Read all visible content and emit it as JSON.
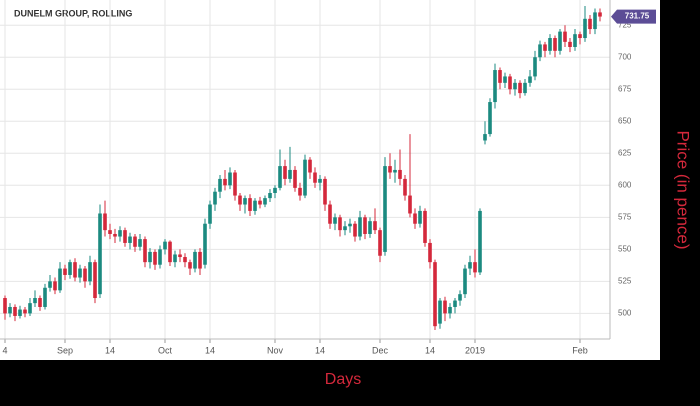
{
  "chart_data": {
    "type": "candlestick",
    "title": "DUNELM GROUP, ROLLING",
    "x_label": "Days",
    "y_label": "Price (in pence)",
    "categories": [
      "4",
      null,
      null,
      null,
      null,
      null,
      null,
      null,
      null,
      null,
      null,
      null,
      "Sep",
      null,
      null,
      null,
      null,
      null,
      null,
      null,
      null,
      "14",
      null,
      null,
      null,
      null,
      null,
      null,
      null,
      null,
      null,
      null,
      "Oct",
      null,
      null,
      null,
      null,
      null,
      null,
      null,
      null,
      "14",
      null,
      null,
      null,
      null,
      null,
      null,
      null,
      null,
      null,
      null,
      null,
      null,
      "Nov",
      null,
      null,
      null,
      null,
      null,
      null,
      null,
      null,
      "14",
      null,
      null,
      null,
      null,
      null,
      null,
      null,
      null,
      null,
      null,
      null,
      "Dec",
      null,
      null,
      null,
      null,
      null,
      null,
      null,
      null,
      null,
      "14",
      null,
      null,
      null,
      null,
      null,
      null,
      null,
      null,
      "2019",
      null,
      null,
      null,
      null,
      null,
      null,
      null,
      null,
      null,
      null,
      null,
      null,
      null,
      null,
      null,
      null,
      null,
      null,
      null,
      null,
      "Feb",
      null,
      null,
      null,
      null
    ],
    "open": [
      512,
      500,
      505,
      498,
      503,
      500,
      508,
      512,
      505,
      520,
      525,
      518,
      535,
      530,
      540,
      528,
      535,
      525,
      540,
      515,
      578,
      565,
      562,
      560,
      565,
      555,
      560,
      552,
      558,
      540,
      548,
      538,
      550,
      556,
      540,
      546,
      544,
      540,
      535,
      548,
      538,
      570,
      585,
      595,
      605,
      600,
      610,
      592,
      585,
      590,
      580,
      588,
      585,
      590,
      594,
      598,
      615,
      605,
      612,
      598,
      592,
      620,
      610,
      602,
      605,
      585,
      570,
      575,
      565,
      568,
      570,
      560,
      575,
      562,
      572,
      565,
      548,
      615,
      610,
      612,
      605,
      592,
      578,
      570,
      580,
      555,
      540,
      492,
      510,
      500,
      505,
      510,
      515,
      535,
      540,
      532,
      635,
      640,
      665,
      690,
      680,
      685,
      675,
      680,
      672,
      680,
      685,
      700,
      710,
      705,
      715,
      705,
      720,
      712,
      708,
      718,
      715,
      730,
      722,
      735
    ],
    "high": [
      514,
      508,
      507,
      506,
      505,
      512,
      518,
      514,
      523,
      530,
      528,
      540,
      538,
      542,
      543,
      538,
      537,
      545,
      542,
      585,
      588,
      570,
      566,
      568,
      567,
      563,
      562,
      562,
      560,
      551,
      550,
      553,
      558,
      557,
      549,
      550,
      547,
      542,
      550,
      551,
      574,
      588,
      598,
      608,
      612,
      614,
      612,
      594,
      592,
      593,
      590,
      591,
      592,
      597,
      600,
      628,
      620,
      630,
      615,
      602,
      624,
      622,
      614,
      608,
      607,
      588,
      578,
      577,
      572,
      574,
      572,
      580,
      577,
      575,
      582,
      567,
      622,
      625,
      620,
      628,
      608,
      640,
      582,
      584,
      582,
      558,
      542,
      512,
      513,
      508,
      512,
      518,
      538,
      545,
      550,
      582,
      650,
      668,
      695,
      692,
      688,
      687,
      683,
      682,
      683,
      690,
      705,
      713,
      712,
      718,
      717,
      722,
      725,
      715,
      722,
      720,
      740,
      733,
      738,
      738
    ],
    "low": [
      495,
      497,
      494,
      496,
      497,
      498,
      505,
      502,
      503,
      517,
      515,
      516,
      526,
      527,
      525,
      524,
      520,
      522,
      508,
      512,
      560,
      558,
      555,
      556,
      552,
      550,
      548,
      549,
      536,
      535,
      534,
      535,
      546,
      537,
      536,
      540,
      536,
      530,
      532,
      530,
      535,
      566,
      580,
      590,
      596,
      597,
      588,
      580,
      578,
      576,
      577,
      582,
      583,
      587,
      590,
      596,
      600,
      602,
      595,
      588,
      590,
      605,
      598,
      596,
      580,
      566,
      565,
      560,
      561,
      563,
      556,
      557,
      558,
      559,
      562,
      540,
      545,
      605,
      602,
      600,
      588,
      575,
      566,
      567,
      552,
      535,
      487,
      488,
      494,
      496,
      500,
      506,
      512,
      530,
      528,
      530,
      632,
      638,
      660,
      675,
      676,
      671,
      670,
      668,
      670,
      677,
      682,
      697,
      700,
      702,
      700,
      702,
      708,
      704,
      705,
      710,
      712,
      718,
      718,
      728
    ],
    "close": [
      500,
      505,
      498,
      503,
      500,
      508,
      512,
      505,
      520,
      525,
      518,
      535,
      530,
      540,
      528,
      535,
      525,
      540,
      512,
      578,
      565,
      562,
      560,
      565,
      555,
      560,
      552,
      558,
      540,
      548,
      538,
      550,
      556,
      540,
      546,
      544,
      540,
      535,
      548,
      535,
      570,
      585,
      595,
      605,
      600,
      610,
      592,
      585,
      590,
      580,
      588,
      585,
      590,
      594,
      598,
      615,
      605,
      612,
      598,
      592,
      620,
      610,
      602,
      605,
      585,
      570,
      575,
      565,
      568,
      570,
      560,
      575,
      562,
      572,
      565,
      545,
      615,
      610,
      612,
      605,
      592,
      578,
      570,
      580,
      555,
      540,
      490,
      510,
      500,
      505,
      510,
      515,
      535,
      540,
      532,
      580,
      640,
      665,
      690,
      680,
      685,
      675,
      680,
      672,
      680,
      685,
      700,
      710,
      705,
      715,
      705,
      720,
      712,
      708,
      718,
      715,
      730,
      722,
      735,
      731.75
    ],
    "up_color": "#1b8a80",
    "down_color": "#d4283b",
    "last_value": 731.75,
    "last_value_color": "#5c4d96",
    "ylim": [
      480,
      740
    ],
    "yticks": [
      500,
      525,
      550,
      575,
      600,
      625,
      650,
      675,
      700,
      725
    ],
    "grid": true
  }
}
